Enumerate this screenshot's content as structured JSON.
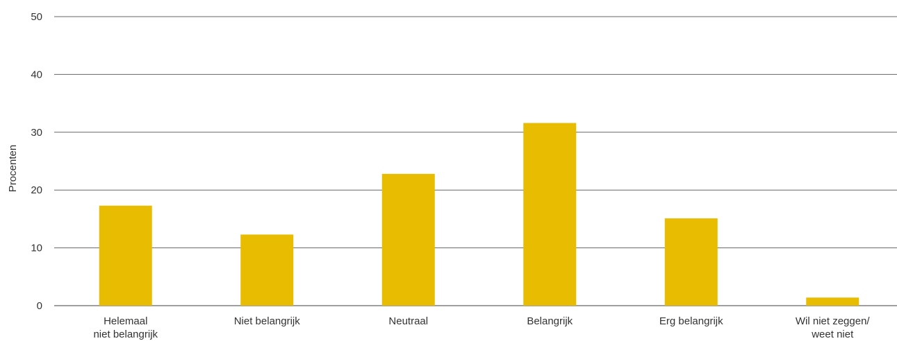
{
  "chart_data": {
    "type": "bar",
    "ylabel": "Procenten",
    "xlabel": "",
    "ylim": [
      0,
      50
    ],
    "yticks": [
      0,
      10,
      20,
      30,
      40,
      50
    ],
    "grid": true,
    "categories": [
      [
        "Helemaal",
        "niet belangrijk"
      ],
      [
        "Niet belangrijk"
      ],
      [
        "Neutraal"
      ],
      [
        "Belangrijk"
      ],
      [
        "Erg belangrijk"
      ],
      [
        "Wil niet zeggen/",
        "weet niet"
      ]
    ],
    "values": [
      17.3,
      12.3,
      22.8,
      31.6,
      15.1,
      1.4
    ],
    "bar_color": "#E8BC00",
    "grid_color": "#666666"
  }
}
